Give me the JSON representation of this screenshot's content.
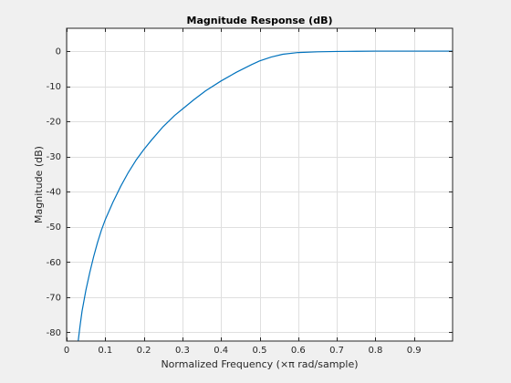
{
  "chart_data": {
    "type": "line",
    "title": "Magnitude Response (dB)",
    "xlabel": "Normalized Frequency (×π rad/sample)",
    "ylabel": "Magnitude (dB)",
    "xlim": [
      0,
      1
    ],
    "ylim": [
      -82.5,
      6.5
    ],
    "xticks": [
      0,
      0.1,
      0.2,
      0.3,
      0.4,
      0.5,
      0.6,
      0.7,
      0.8,
      0.9
    ],
    "xtick_labels": [
      "0",
      "0.1",
      "0.2",
      "0.3",
      "0.4",
      "0.5",
      "0.6",
      "0.7",
      "0.8",
      "0.9"
    ],
    "yticks": [
      0,
      -10,
      -20,
      -30,
      -40,
      -50,
      -60,
      -70,
      -80
    ],
    "ytick_labels": [
      "0",
      "-10",
      "-20",
      "-30",
      "-40",
      "-50",
      "-60",
      "-70",
      "-80"
    ],
    "grid": true,
    "series": [
      {
        "color": "#0072bd",
        "x": [
          0.03,
          0.035,
          0.04,
          0.05,
          0.06,
          0.07,
          0.08,
          0.09,
          0.1,
          0.12,
          0.14,
          0.16,
          0.18,
          0.2,
          0.22,
          0.25,
          0.28,
          0.3,
          0.33,
          0.36,
          0.4,
          0.44,
          0.48,
          0.5,
          0.53,
          0.56,
          0.6,
          0.65,
          0.7,
          0.75,
          0.8,
          0.9,
          1.0
        ],
        "y": [
          -82.5,
          -78,
          -74,
          -68,
          -63,
          -58.5,
          -54.5,
          -51,
          -48,
          -43,
          -38.5,
          -34.5,
          -31,
          -28,
          -25.3,
          -21.5,
          -18.3,
          -16.5,
          -13.8,
          -11.3,
          -8.5,
          -6.0,
          -3.8,
          -2.8,
          -1.7,
          -0.9,
          -0.4,
          -0.2,
          -0.1,
          -0.05,
          0,
          0,
          0
        ]
      }
    ]
  }
}
